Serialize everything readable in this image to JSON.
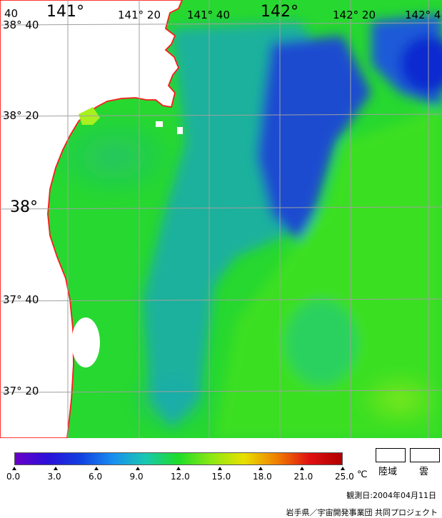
{
  "map": {
    "top_labels": {
      "lon_140_40_cut": "40",
      "lon_141": "141°",
      "lon_141_20": "141° 20",
      "lon_141_40": "141° 40",
      "lon_142": "142°",
      "lon_142_20": "142° 20",
      "lon_142_40_cut": "142° 4"
    },
    "left_labels": {
      "lat_38_40": "38° 40",
      "lat_38_20": "38° 20",
      "lat_38": "38°",
      "lat_37_40": "37° 40",
      "lat_37_20": "37° 20"
    },
    "colors": {
      "land": "#ffffff",
      "coast": "#ff1a1a",
      "grid": "#a0a0a0",
      "sea_base": "#27d830"
    }
  },
  "colorbar": {
    "ticks": [
      "0.0",
      "3.0",
      "6.0",
      "9.0",
      "12.0",
      "15.0",
      "18.0",
      "21.0",
      "25.0"
    ],
    "unit": "℃",
    "stops": [
      "#6a00c8",
      "#2a10d8",
      "#1040e0",
      "#1a8ef0",
      "#18c8b0",
      "#1edc28",
      "#8ce814",
      "#e8e000",
      "#f08000",
      "#e01010",
      "#b00000"
    ]
  },
  "legend": {
    "land_label": "陸域",
    "cloud_label": "雲"
  },
  "footer": {
    "observation_date": "観測日:2004年04月11日",
    "credit": "岩手県／宇宙開発事業団 共同プロジェクト"
  }
}
